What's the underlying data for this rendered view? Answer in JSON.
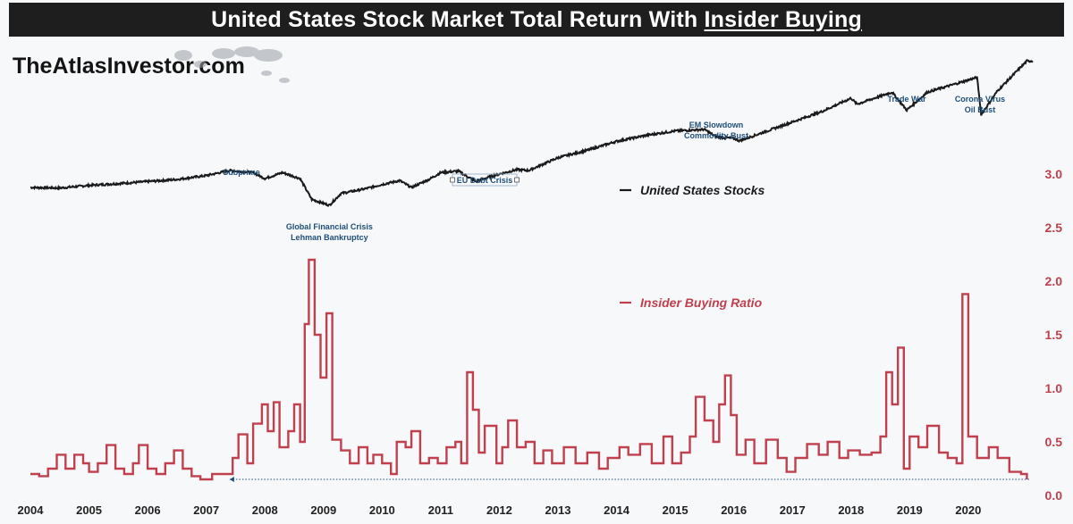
{
  "header": {
    "title_prefix": "United States Stock Market Total Return With ",
    "title_underlined": "Insider Buying"
  },
  "brand": {
    "name": "TheAtlasInvestor.com",
    "icon": "world-map-icon"
  },
  "colors": {
    "stocks": "#1a1a1a",
    "ratio": "#c0404e",
    "annotation": "#1f4e79",
    "background": "#f7f8fa"
  },
  "chart_data": {
    "type": "line",
    "title": "United States Stock Market Total Return With Insider Buying",
    "x_range": [
      2004.0,
      2021.1
    ],
    "x_ticks": [
      "2004",
      "2005",
      "2006",
      "2007",
      "2008",
      "2009",
      "2010",
      "2011",
      "2012",
      "2013",
      "2014",
      "2015",
      "2016",
      "2017",
      "2018",
      "2019",
      "2020"
    ],
    "y_axis": {
      "side": "right",
      "range": [
        0.0,
        3.0
      ],
      "ticks": [
        "0.0",
        "0.5",
        "1.0",
        "1.5",
        "2.0",
        "2.5",
        "3.0"
      ],
      "label": ""
    },
    "legend_position": "right",
    "series": [
      {
        "name": "United States Stocks",
        "axis": "secondary-unlabeled",
        "index_range": [
          1.0,
          7.0
        ],
        "points": [
          [
            2004.0,
            2.05
          ],
          [
            2004.5,
            2.03
          ],
          [
            2005.0,
            2.12
          ],
          [
            2005.5,
            2.18
          ],
          [
            2006.0,
            2.25
          ],
          [
            2006.5,
            2.32
          ],
          [
            2007.0,
            2.45
          ],
          [
            2007.4,
            2.62
          ],
          [
            2007.8,
            2.55
          ],
          [
            2008.0,
            2.35
          ],
          [
            2008.3,
            2.55
          ],
          [
            2008.6,
            2.35
          ],
          [
            2008.8,
            1.65
          ],
          [
            2009.1,
            1.45
          ],
          [
            2009.3,
            1.85
          ],
          [
            2009.7,
            2.0
          ],
          [
            2010.0,
            2.15
          ],
          [
            2010.3,
            2.28
          ],
          [
            2010.5,
            2.05
          ],
          [
            2010.8,
            2.32
          ],
          [
            2011.0,
            2.55
          ],
          [
            2011.3,
            2.6
          ],
          [
            2011.6,
            2.25
          ],
          [
            2011.9,
            2.45
          ],
          [
            2012.3,
            2.65
          ],
          [
            2012.5,
            2.62
          ],
          [
            2013.0,
            3.05
          ],
          [
            2013.5,
            3.3
          ],
          [
            2014.0,
            3.6
          ],
          [
            2014.5,
            3.8
          ],
          [
            2015.0,
            3.95
          ],
          [
            2015.5,
            4.0
          ],
          [
            2015.7,
            3.75
          ],
          [
            2016.0,
            3.7
          ],
          [
            2016.1,
            3.62
          ],
          [
            2016.5,
            3.9
          ],
          [
            2017.0,
            4.25
          ],
          [
            2017.5,
            4.6
          ],
          [
            2018.0,
            5.05
          ],
          [
            2018.1,
            4.85
          ],
          [
            2018.7,
            5.25
          ],
          [
            2018.95,
            4.65
          ],
          [
            2019.3,
            5.25
          ],
          [
            2019.9,
            5.6
          ],
          [
            2020.15,
            5.75
          ],
          [
            2020.22,
            4.5
          ],
          [
            2020.5,
            5.3
          ],
          [
            2021.0,
            6.3
          ],
          [
            2021.1,
            6.3
          ]
        ]
      },
      {
        "name": "Insider Buying Ratio",
        "axis": "right",
        "points": [
          [
            2004.0,
            0.2
          ],
          [
            2004.15,
            0.18
          ],
          [
            2004.3,
            0.25
          ],
          [
            2004.45,
            0.38
          ],
          [
            2004.6,
            0.25
          ],
          [
            2004.75,
            0.38
          ],
          [
            2004.9,
            0.3
          ],
          [
            2005.0,
            0.22
          ],
          [
            2005.15,
            0.3
          ],
          [
            2005.3,
            0.47
          ],
          [
            2005.45,
            0.25
          ],
          [
            2005.6,
            0.2
          ],
          [
            2005.75,
            0.3
          ],
          [
            2005.85,
            0.47
          ],
          [
            2006.0,
            0.25
          ],
          [
            2006.15,
            0.2
          ],
          [
            2006.3,
            0.3
          ],
          [
            2006.45,
            0.42
          ],
          [
            2006.6,
            0.25
          ],
          [
            2006.75,
            0.18
          ],
          [
            2006.9,
            0.15
          ],
          [
            2007.1,
            0.2
          ],
          [
            2007.3,
            0.2
          ],
          [
            2007.45,
            0.35
          ],
          [
            2007.55,
            0.57
          ],
          [
            2007.7,
            0.3
          ],
          [
            2007.8,
            0.67
          ],
          [
            2007.95,
            0.85
          ],
          [
            2008.05,
            0.6
          ],
          [
            2008.15,
            0.87
          ],
          [
            2008.25,
            0.45
          ],
          [
            2008.4,
            0.6
          ],
          [
            2008.5,
            0.85
          ],
          [
            2008.6,
            0.5
          ],
          [
            2008.68,
            1.6
          ],
          [
            2008.75,
            2.2
          ],
          [
            2008.85,
            1.5
          ],
          [
            2008.95,
            1.1
          ],
          [
            2009.05,
            1.7
          ],
          [
            2009.15,
            0.52
          ],
          [
            2009.3,
            0.42
          ],
          [
            2009.45,
            0.3
          ],
          [
            2009.6,
            0.45
          ],
          [
            2009.75,
            0.3
          ],
          [
            2009.85,
            0.38
          ],
          [
            2010.0,
            0.3
          ],
          [
            2010.15,
            0.2
          ],
          [
            2010.25,
            0.5
          ],
          [
            2010.4,
            0.45
          ],
          [
            2010.5,
            0.6
          ],
          [
            2010.65,
            0.3
          ],
          [
            2010.8,
            0.35
          ],
          [
            2010.95,
            0.3
          ],
          [
            2011.1,
            0.45
          ],
          [
            2011.25,
            0.5
          ],
          [
            2011.35,
            0.3
          ],
          [
            2011.45,
            1.15
          ],
          [
            2011.55,
            0.8
          ],
          [
            2011.65,
            0.4
          ],
          [
            2011.75,
            0.65
          ],
          [
            2011.95,
            0.3
          ],
          [
            2012.05,
            0.45
          ],
          [
            2012.15,
            0.7
          ],
          [
            2012.3,
            0.45
          ],
          [
            2012.45,
            0.5
          ],
          [
            2012.6,
            0.3
          ],
          [
            2012.75,
            0.42
          ],
          [
            2012.9,
            0.3
          ],
          [
            2013.1,
            0.45
          ],
          [
            2013.3,
            0.3
          ],
          [
            2013.5,
            0.4
          ],
          [
            2013.7,
            0.25
          ],
          [
            2013.85,
            0.35
          ],
          [
            2014.05,
            0.45
          ],
          [
            2014.2,
            0.38
          ],
          [
            2014.4,
            0.48
          ],
          [
            2014.6,
            0.3
          ],
          [
            2014.8,
            0.55
          ],
          [
            2014.95,
            0.3
          ],
          [
            2015.1,
            0.4
          ],
          [
            2015.25,
            0.55
          ],
          [
            2015.35,
            0.92
          ],
          [
            2015.5,
            0.7
          ],
          [
            2015.65,
            0.5
          ],
          [
            2015.75,
            0.85
          ],
          [
            2015.85,
            1.12
          ],
          [
            2015.95,
            0.75
          ],
          [
            2016.05,
            0.38
          ],
          [
            2016.2,
            0.52
          ],
          [
            2016.35,
            0.3
          ],
          [
            2016.55,
            0.52
          ],
          [
            2016.75,
            0.35
          ],
          [
            2016.9,
            0.22
          ],
          [
            2017.05,
            0.35
          ],
          [
            2017.25,
            0.48
          ],
          [
            2017.45,
            0.38
          ],
          [
            2017.6,
            0.5
          ],
          [
            2017.8,
            0.35
          ],
          [
            2017.95,
            0.42
          ],
          [
            2018.15,
            0.38
          ],
          [
            2018.35,
            0.4
          ],
          [
            2018.5,
            0.55
          ],
          [
            2018.6,
            1.15
          ],
          [
            2018.7,
            0.85
          ],
          [
            2018.8,
            1.38
          ],
          [
            2018.9,
            0.25
          ],
          [
            2019.0,
            0.55
          ],
          [
            2019.15,
            0.45
          ],
          [
            2019.3,
            0.65
          ],
          [
            2019.5,
            0.4
          ],
          [
            2019.65,
            0.35
          ],
          [
            2019.8,
            0.3
          ],
          [
            2019.9,
            1.88
          ],
          [
            2020.0,
            0.55
          ],
          [
            2020.15,
            0.35
          ],
          [
            2020.35,
            0.45
          ],
          [
            2020.5,
            0.35
          ],
          [
            2020.7,
            0.22
          ],
          [
            2020.9,
            0.2
          ],
          [
            2021.0,
            0.15
          ]
        ]
      }
    ],
    "reference_line": {
      "type": "dotted",
      "y": 0.15,
      "from_x": 2007.4,
      "to_x": 2021.05
    },
    "annotations": [
      {
        "lines": [
          "Subprime"
        ],
        "x": 2007.6
      },
      {
        "lines": [
          "Global Financial Crisis",
          "Lehman Bankruptcy"
        ],
        "x": 2009.1
      },
      {
        "lines": [
          "EU Debt Crisis"
        ],
        "x": 2011.75,
        "boxed": true
      },
      {
        "lines": [
          "EM Slowdown",
          "Commodity Bust"
        ],
        "x": 2015.7
      },
      {
        "lines": [
          "Trade War"
        ],
        "x": 2018.95
      },
      {
        "lines": [
          "Corona Virus",
          "Oil Bust"
        ],
        "x": 2020.2
      }
    ]
  }
}
